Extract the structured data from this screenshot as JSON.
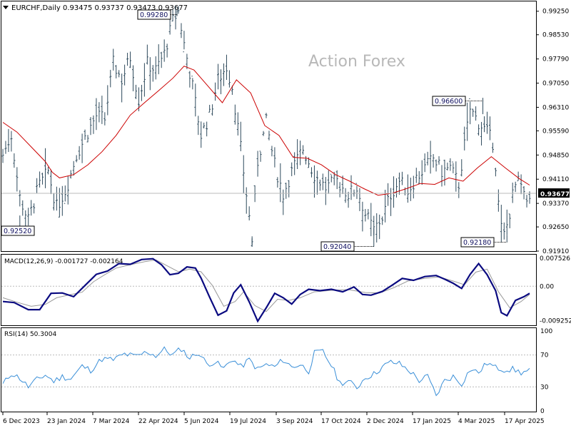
{
  "header": {
    "symbol": "EURCHF,Daily",
    "ohlc": "0.93475 0.93737 0.93473 0.93677"
  },
  "watermark": "Action Forex",
  "colors": {
    "bars": "#2e4a5c",
    "ma": "#cc0000",
    "macd_line": "#0a0a80",
    "macd_signal": "#999999",
    "rsi": "#3a8fd8",
    "axis": "#000000",
    "grid": "#bbbbbb",
    "watermark": "#b8b8b8"
  },
  "chart_data": [
    {
      "type": "line",
      "subtype": "ohlc-bars",
      "ylim": [
        0.9191,
        0.9955
      ],
      "yticks": [
        "0.99250",
        "0.98530",
        "0.97790",
        "0.97050",
        "0.96310",
        "0.95590",
        "0.94850",
        "0.94110",
        "0.93370",
        "0.92650",
        "0.91910"
      ],
      "current_price": "0.93677",
      "callouts": [
        "0.99280",
        "0.96600",
        "0.92180",
        "0.92040",
        "0.92520"
      ],
      "ma_series": [
        {
          "i": 0,
          "v": 0.9585
        },
        {
          "i": 10,
          "v": 0.9555
        },
        {
          "i": 20,
          "v": 0.951
        },
        {
          "i": 30,
          "v": 0.9465
        },
        {
          "i": 35,
          "v": 0.9432
        },
        {
          "i": 40,
          "v": 0.9415
        },
        {
          "i": 50,
          "v": 0.9425
        },
        {
          "i": 60,
          "v": 0.9455
        },
        {
          "i": 70,
          "v": 0.9495
        },
        {
          "i": 80,
          "v": 0.9545
        },
        {
          "i": 90,
          "v": 0.9607
        },
        {
          "i": 100,
          "v": 0.9645
        },
        {
          "i": 110,
          "v": 0.9682
        },
        {
          "i": 120,
          "v": 0.972
        },
        {
          "i": 128,
          "v": 0.9757
        },
        {
          "i": 135,
          "v": 0.9745
        },
        {
          "i": 145,
          "v": 0.9695
        },
        {
          "i": 155,
          "v": 0.9645
        },
        {
          "i": 165,
          "v": 0.9715
        },
        {
          "i": 175,
          "v": 0.9675
        },
        {
          "i": 185,
          "v": 0.9575
        },
        {
          "i": 195,
          "v": 0.9545
        },
        {
          "i": 205,
          "v": 0.9478
        },
        {
          "i": 215,
          "v": 0.9475
        },
        {
          "i": 225,
          "v": 0.9455
        },
        {
          "i": 235,
          "v": 0.9425
        },
        {
          "i": 245,
          "v": 0.9405
        },
        {
          "i": 255,
          "v": 0.9382
        },
        {
          "i": 265,
          "v": 0.9362
        },
        {
          "i": 275,
          "v": 0.9368
        },
        {
          "i": 285,
          "v": 0.9382
        },
        {
          "i": 295,
          "v": 0.9398
        },
        {
          "i": 305,
          "v": 0.9395
        },
        {
          "i": 315,
          "v": 0.9415
        },
        {
          "i": 325,
          "v": 0.9405
        },
        {
          "i": 335,
          "v": 0.9445
        },
        {
          "i": 345,
          "v": 0.948
        },
        {
          "i": 355,
          "v": 0.9445
        },
        {
          "i": 365,
          "v": 0.9412
        },
        {
          "i": 372,
          "v": 0.9393
        }
      ],
      "bars_summary": [
        {
          "i": 0,
          "v": 0.9485
        },
        {
          "i": 6,
          "v": 0.9547
        },
        {
          "i": 12,
          "v": 0.9355
        },
        {
          "i": 18,
          "v": 0.9285
        },
        {
          "i": 25,
          "v": 0.9385
        },
        {
          "i": 32,
          "v": 0.9435
        },
        {
          "i": 38,
          "v": 0.9325
        },
        {
          "i": 45,
          "v": 0.9385
        },
        {
          "i": 52,
          "v": 0.9485
        },
        {
          "i": 60,
          "v": 0.9555
        },
        {
          "i": 66,
          "v": 0.9605
        },
        {
          "i": 72,
          "v": 0.9595
        },
        {
          "i": 78,
          "v": 0.9765
        },
        {
          "i": 84,
          "v": 0.9715
        },
        {
          "i": 90,
          "v": 0.9785
        },
        {
          "i": 96,
          "v": 0.9655
        },
        {
          "i": 102,
          "v": 0.9765
        },
        {
          "i": 108,
          "v": 0.9745
        },
        {
          "i": 114,
          "v": 0.9795
        },
        {
          "i": 120,
          "v": 0.9895
        },
        {
          "i": 124,
          "v": 0.9925
        },
        {
          "i": 128,
          "v": 0.9825
        },
        {
          "i": 134,
          "v": 0.9695
        },
        {
          "i": 140,
          "v": 0.9545
        },
        {
          "i": 146,
          "v": 0.9605
        },
        {
          "i": 152,
          "v": 0.9715
        },
        {
          "i": 158,
          "v": 0.9755
        },
        {
          "i": 162,
          "v": 0.9695
        },
        {
          "i": 168,
          "v": 0.9505
        },
        {
          "i": 172,
          "v": 0.9365
        },
        {
          "i": 176,
          "v": 0.9225
        },
        {
          "i": 180,
          "v": 0.9465
        },
        {
          "i": 186,
          "v": 0.9585
        },
        {
          "i": 192,
          "v": 0.9455
        },
        {
          "i": 198,
          "v": 0.9365
        },
        {
          "i": 205,
          "v": 0.9445
        },
        {
          "i": 212,
          "v": 0.9505
        },
        {
          "i": 220,
          "v": 0.9425
        },
        {
          "i": 228,
          "v": 0.9385
        },
        {
          "i": 236,
          "v": 0.9405
        },
        {
          "i": 244,
          "v": 0.9365
        },
        {
          "i": 250,
          "v": 0.9385
        },
        {
          "i": 256,
          "v": 0.9305
        },
        {
          "i": 262,
          "v": 0.9255
        },
        {
          "i": 268,
          "v": 0.9295
        },
        {
          "i": 274,
          "v": 0.9365
        },
        {
          "i": 280,
          "v": 0.9405
        },
        {
          "i": 286,
          "v": 0.9375
        },
        {
          "i": 292,
          "v": 0.9415
        },
        {
          "i": 298,
          "v": 0.9445
        },
        {
          "i": 304,
          "v": 0.9475
        },
        {
          "i": 310,
          "v": 0.9435
        },
        {
          "i": 316,
          "v": 0.9445
        },
        {
          "i": 322,
          "v": 0.9395
        },
        {
          "i": 326,
          "v": 0.9515
        },
        {
          "i": 330,
          "v": 0.9625
        },
        {
          "i": 336,
          "v": 0.9585
        },
        {
          "i": 342,
          "v": 0.9555
        },
        {
          "i": 347,
          "v": 0.9515
        },
        {
          "i": 350,
          "v": 0.9335
        },
        {
          "i": 353,
          "v": 0.9225
        },
        {
          "i": 357,
          "v": 0.9285
        },
        {
          "i": 361,
          "v": 0.9385
        },
        {
          "i": 365,
          "v": 0.9405
        },
        {
          "i": 369,
          "v": 0.9335
        },
        {
          "i": 372,
          "v": 0.9368
        }
      ]
    },
    {
      "type": "line",
      "label": "MACD(12,26,9) -0.001727 -0.002164",
      "ylim": [
        -0.0105,
        0.0085
      ],
      "yticks": [
        "0.007526",
        "0.00",
        "-0.009252"
      ],
      "macd_series": [
        {
          "i": 0,
          "v": -0.0041
        },
        {
          "i": 8,
          "v": -0.0044
        },
        {
          "i": 18,
          "v": -0.0063
        },
        {
          "i": 26,
          "v": -0.0063
        },
        {
          "i": 34,
          "v": -0.0019
        },
        {
          "i": 42,
          "v": -0.0018
        },
        {
          "i": 50,
          "v": -0.0028
        },
        {
          "i": 58,
          "v": 0.0002
        },
        {
          "i": 66,
          "v": 0.0032
        },
        {
          "i": 74,
          "v": 0.0041
        },
        {
          "i": 82,
          "v": 0.0061
        },
        {
          "i": 90,
          "v": 0.0059
        },
        {
          "i": 98,
          "v": 0.0072
        },
        {
          "i": 106,
          "v": 0.0074
        },
        {
          "i": 112,
          "v": 0.0058
        },
        {
          "i": 118,
          "v": 0.0031
        },
        {
          "i": 124,
          "v": 0.0035
        },
        {
          "i": 130,
          "v": 0.0052
        },
        {
          "i": 136,
          "v": 0.0049
        },
        {
          "i": 140,
          "v": 0.0022
        },
        {
          "i": 146,
          "v": -0.0029
        },
        {
          "i": 152,
          "v": -0.0078
        },
        {
          "i": 158,
          "v": -0.0066
        },
        {
          "i": 163,
          "v": -0.0018
        },
        {
          "i": 168,
          "v": 0.0004
        },
        {
          "i": 174,
          "v": -0.0042
        },
        {
          "i": 180,
          "v": -0.0094
        },
        {
          "i": 186,
          "v": -0.0058
        },
        {
          "i": 192,
          "v": -0.0019
        },
        {
          "i": 198,
          "v": -0.0031
        },
        {
          "i": 204,
          "v": -0.0048
        },
        {
          "i": 210,
          "v": -0.0022
        },
        {
          "i": 216,
          "v": -0.0008
        },
        {
          "i": 224,
          "v": -0.0012
        },
        {
          "i": 232,
          "v": -0.0008
        },
        {
          "i": 240,
          "v": -0.0015
        },
        {
          "i": 248,
          "v": -0.0002
        },
        {
          "i": 254,
          "v": -0.0022
        },
        {
          "i": 260,
          "v": -0.0024
        },
        {
          "i": 268,
          "v": -0.0014
        },
        {
          "i": 275,
          "v": 0.0003
        },
        {
          "i": 282,
          "v": 0.0021
        },
        {
          "i": 290,
          "v": 0.0016
        },
        {
          "i": 298,
          "v": 0.0026
        },
        {
          "i": 306,
          "v": 0.0029
        },
        {
          "i": 312,
          "v": 0.0019
        },
        {
          "i": 318,
          "v": 0.0008
        },
        {
          "i": 324,
          "v": -0.0006
        },
        {
          "i": 330,
          "v": 0.0032
        },
        {
          "i": 336,
          "v": 0.0061
        },
        {
          "i": 342,
          "v": 0.0031
        },
        {
          "i": 348,
          "v": -0.0012
        },
        {
          "i": 352,
          "v": -0.0071
        },
        {
          "i": 356,
          "v": -0.0079
        },
        {
          "i": 362,
          "v": -0.0038
        },
        {
          "i": 368,
          "v": -0.0028
        },
        {
          "i": 372,
          "v": -0.0019
        }
      ],
      "signal_series": [
        {
          "i": 0,
          "v": -0.0031
        },
        {
          "i": 10,
          "v": -0.0043
        },
        {
          "i": 20,
          "v": -0.0054
        },
        {
          "i": 30,
          "v": -0.0049
        },
        {
          "i": 38,
          "v": -0.0031
        },
        {
          "i": 46,
          "v": -0.0024
        },
        {
          "i": 56,
          "v": -0.0016
        },
        {
          "i": 64,
          "v": 0.0012
        },
        {
          "i": 72,
          "v": 0.0031
        },
        {
          "i": 80,
          "v": 0.0049
        },
        {
          "i": 90,
          "v": 0.0058
        },
        {
          "i": 100,
          "v": 0.0066
        },
        {
          "i": 108,
          "v": 0.0071
        },
        {
          "i": 116,
          "v": 0.0055
        },
        {
          "i": 124,
          "v": 0.0039
        },
        {
          "i": 132,
          "v": 0.0046
        },
        {
          "i": 140,
          "v": 0.0039
        },
        {
          "i": 148,
          "v": 0.0002
        },
        {
          "i": 156,
          "v": -0.0054
        },
        {
          "i": 164,
          "v": -0.0041
        },
        {
          "i": 170,
          "v": -0.0015
        },
        {
          "i": 178,
          "v": -0.0052
        },
        {
          "i": 186,
          "v": -0.0068
        },
        {
          "i": 194,
          "v": -0.0035
        },
        {
          "i": 202,
          "v": -0.0038
        },
        {
          "i": 210,
          "v": -0.0031
        },
        {
          "i": 220,
          "v": -0.0015
        },
        {
          "i": 232,
          "v": -0.0011
        },
        {
          "i": 244,
          "v": -0.0009
        },
        {
          "i": 256,
          "v": -0.0017
        },
        {
          "i": 266,
          "v": -0.0018
        },
        {
          "i": 276,
          "v": -0.0004
        },
        {
          "i": 286,
          "v": 0.0014
        },
        {
          "i": 298,
          "v": 0.0021
        },
        {
          "i": 308,
          "v": 0.0025
        },
        {
          "i": 318,
          "v": 0.0014
        },
        {
          "i": 326,
          "v": 0.0004
        },
        {
          "i": 334,
          "v": 0.0038
        },
        {
          "i": 342,
          "v": 0.0046
        },
        {
          "i": 350,
          "v": -0.0015
        },
        {
          "i": 358,
          "v": -0.0058
        },
        {
          "i": 366,
          "v": -0.0041
        },
        {
          "i": 372,
          "v": -0.0022
        }
      ]
    },
    {
      "type": "line",
      "label": "RSI(14) 50.3004",
      "ylim": [
        0,
        100
      ],
      "yticks": [
        "100",
        "70",
        "30",
        "0"
      ],
      "levels": [
        70,
        30
      ],
      "rsi_series": [
        {
          "i": 0,
          "v": 33
        },
        {
          "i": 6,
          "v": 47
        },
        {
          "i": 12,
          "v": 41
        },
        {
          "i": 18,
          "v": 30
        },
        {
          "i": 24,
          "v": 39
        },
        {
          "i": 30,
          "v": 45
        },
        {
          "i": 36,
          "v": 37
        },
        {
          "i": 42,
          "v": 43
        },
        {
          "i": 48,
          "v": 40
        },
        {
          "i": 56,
          "v": 56
        },
        {
          "i": 62,
          "v": 51
        },
        {
          "i": 70,
          "v": 65
        },
        {
          "i": 78,
          "v": 64
        },
        {
          "i": 86,
          "v": 71
        },
        {
          "i": 94,
          "v": 68
        },
        {
          "i": 102,
          "v": 74
        },
        {
          "i": 108,
          "v": 69
        },
        {
          "i": 114,
          "v": 77
        },
        {
          "i": 120,
          "v": 70
        },
        {
          "i": 126,
          "v": 78
        },
        {
          "i": 132,
          "v": 66
        },
        {
          "i": 138,
          "v": 73
        },
        {
          "i": 144,
          "v": 59
        },
        {
          "i": 150,
          "v": 61
        },
        {
          "i": 156,
          "v": 53
        },
        {
          "i": 162,
          "v": 65
        },
        {
          "i": 168,
          "v": 55
        },
        {
          "i": 174,
          "v": 64
        },
        {
          "i": 180,
          "v": 52
        },
        {
          "i": 186,
          "v": 58
        },
        {
          "i": 192,
          "v": 55
        },
        {
          "i": 198,
          "v": 64
        },
        {
          "i": 204,
          "v": 55
        },
        {
          "i": 210,
          "v": 58
        },
        {
          "i": 216,
          "v": 50
        },
        {
          "i": 220,
          "v": 72
        },
        {
          "i": 226,
          "v": 74
        },
        {
          "i": 232,
          "v": 57
        },
        {
          "i": 238,
          "v": 35
        },
        {
          "i": 244,
          "v": 37
        },
        {
          "i": 250,
          "v": 29
        },
        {
          "i": 256,
          "v": 42
        },
        {
          "i": 262,
          "v": 46
        },
        {
          "i": 268,
          "v": 55
        },
        {
          "i": 274,
          "v": 61
        },
        {
          "i": 280,
          "v": 59
        },
        {
          "i": 288,
          "v": 49
        },
        {
          "i": 294,
          "v": 38
        },
        {
          "i": 300,
          "v": 43
        },
        {
          "i": 306,
          "v": 19
        },
        {
          "i": 312,
          "v": 38
        },
        {
          "i": 318,
          "v": 43
        },
        {
          "i": 324,
          "v": 34
        },
        {
          "i": 330,
          "v": 52
        },
        {
          "i": 336,
          "v": 48
        },
        {
          "i": 342,
          "v": 60
        },
        {
          "i": 348,
          "v": 54
        },
        {
          "i": 354,
          "v": 52
        },
        {
          "i": 360,
          "v": 52
        },
        {
          "i": 366,
          "v": 48
        },
        {
          "i": 372,
          "v": 50
        }
      ]
    },
    {
      "type": "axis",
      "xticks": [
        "6 Dec 2023",
        "23 Jan 2024",
        "7 Mar 2024",
        "22 Apr 2024",
        "5 Jun 2024",
        "19 Jul 2024",
        "3 Sep 2024",
        "17 Oct 2024",
        "2 Dec 2024",
        "17 Jan 2025",
        "4 Mar 2025",
        "17 Apr 2025"
      ]
    }
  ]
}
